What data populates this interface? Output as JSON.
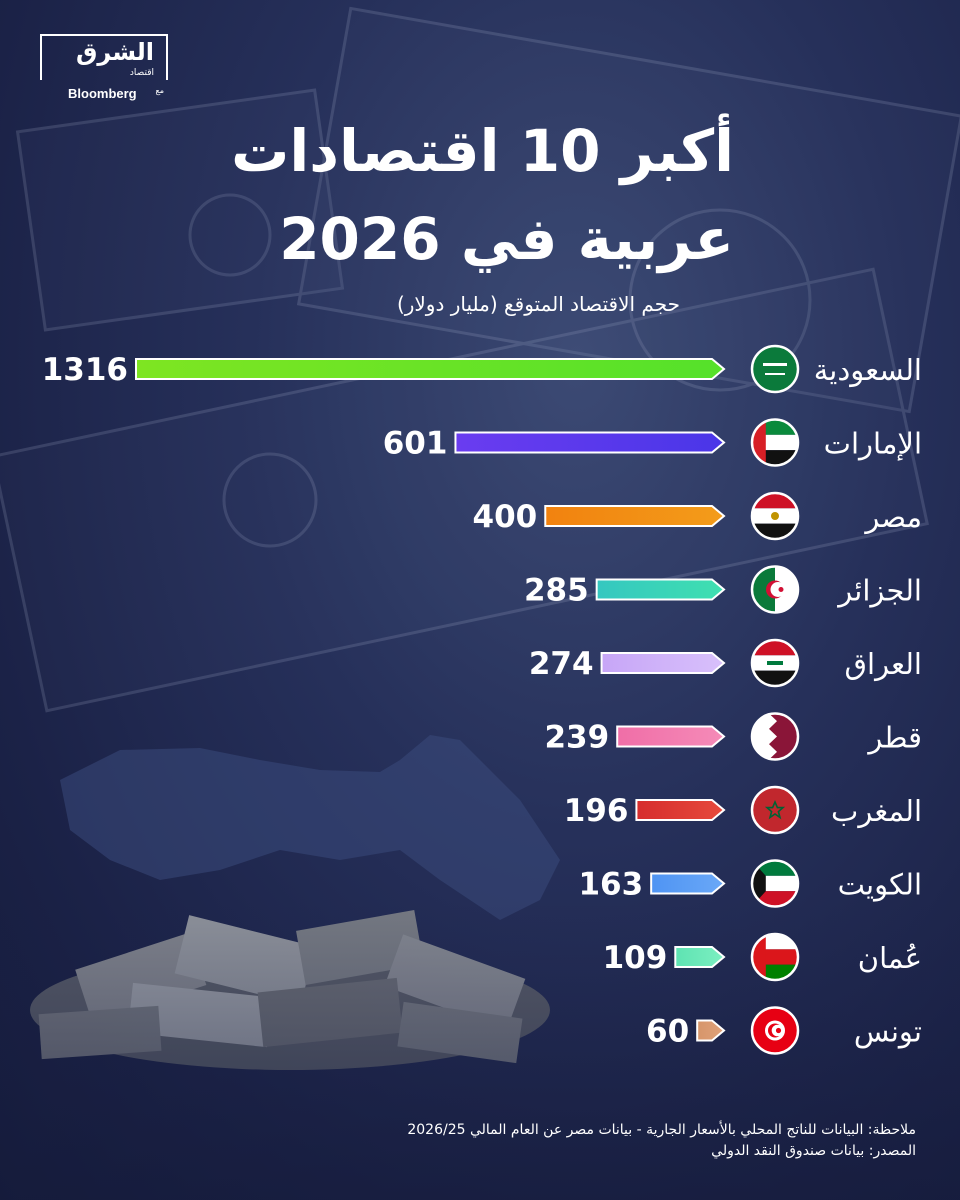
{
  "brand": {
    "name": "الشرق",
    "sub": "اقتصاد",
    "with": "مع",
    "partner": "Bloomberg"
  },
  "header": {
    "title_line1": "أكبر 10 اقتصادات",
    "title_line2": "عربية في 2026",
    "subtitle": "حجم الاقتصاد المتوقع (مليار دولار)"
  },
  "chart_data": {
    "type": "bar",
    "orientation": "horizontal",
    "title": "أكبر 10 اقتصادات عربية في 2026",
    "subtitle": "حجم الاقتصاد المتوقع (مليار دولار)",
    "categories": [
      "السعودية",
      "الإمارات",
      "مصر",
      "الجزائر",
      "العراق",
      "قطر",
      "المغرب",
      "الكويت",
      "عُمان",
      "تونس"
    ],
    "values": [
      1316,
      601,
      400,
      285,
      274,
      239,
      196,
      163,
      109,
      60
    ],
    "colors": [
      "#7ee522",
      "#6a3cf0",
      "#f2820f",
      "#35c7c0",
      "#c7a6f7",
      "#f06ea7",
      "#d62d2d",
      "#4f94f3",
      "#5ee3b2",
      "#d6956a"
    ],
    "gradient_to": [
      "#55e12a",
      "#4a36e8",
      "#f39c1a",
      "#3fe0b0",
      "#d8c0fb",
      "#f58bb8",
      "#e64a3c",
      "#6aa8f7",
      "#7cefc1",
      "#e0a27a"
    ],
    "flags": [
      "saudi-flag-icon",
      "uae-flag-icon",
      "egypt-flag-icon",
      "algeria-flag-icon",
      "iraq-flag-icon",
      "qatar-flag-icon",
      "morocco-flag-icon",
      "kuwait-flag-icon",
      "oman-flag-icon",
      "tunisia-flag-icon"
    ],
    "xlim": [
      0,
      1316
    ]
  },
  "footer": {
    "note": "ملاحظة: البيانات للناتج المحلي بالأسعار الجارية - بيانات مصر عن العام المالي 2026/25",
    "source": "المصدر: بيانات صندوق النقد الدولي"
  }
}
